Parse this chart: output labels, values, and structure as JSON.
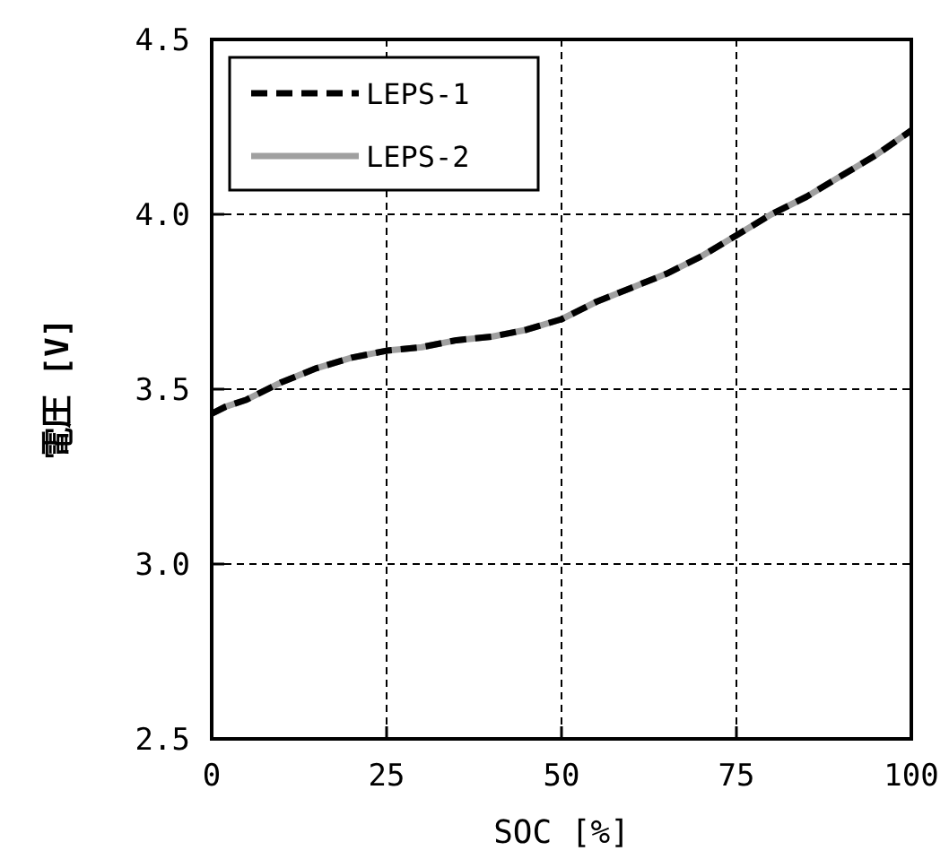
{
  "chart_data": {
    "type": "line",
    "xlabel": "SOC [%]",
    "ylabel": "電圧 [V]",
    "x": [
      0,
      2,
      5,
      10,
      15,
      20,
      25,
      30,
      35,
      40,
      45,
      50,
      55,
      60,
      65,
      70,
      75,
      80,
      85,
      90,
      95,
      100
    ],
    "series": [
      {
        "name": "LEPS-1",
        "color": "#000000",
        "line_style": "dashed",
        "values": [
          3.43,
          3.45,
          3.47,
          3.52,
          3.56,
          3.59,
          3.61,
          3.62,
          3.64,
          3.65,
          3.67,
          3.7,
          3.75,
          3.79,
          3.83,
          3.88,
          3.94,
          4.0,
          4.05,
          4.11,
          4.17,
          4.24
        ]
      },
      {
        "name": "LEPS-2",
        "color": "#a0a0a0",
        "line_style": "solid",
        "values": [
          3.43,
          3.45,
          3.47,
          3.52,
          3.56,
          3.59,
          3.61,
          3.62,
          3.64,
          3.65,
          3.67,
          3.7,
          3.75,
          3.79,
          3.83,
          3.88,
          3.94,
          4.0,
          4.05,
          4.11,
          4.17,
          4.24
        ]
      }
    ],
    "xlim": [
      0,
      100
    ],
    "xticks": [
      0,
      25,
      50,
      75,
      100
    ],
    "ylim": [
      2.5,
      4.5
    ],
    "yticks": [
      2.5,
      {
        "value": 3.0,
        "label": "3.0"
      },
      3.5,
      {
        "value": 4.0,
        "label": "4.0"
      },
      4.5
    ],
    "grid": true,
    "legend": "top left",
    "marker": "none"
  }
}
